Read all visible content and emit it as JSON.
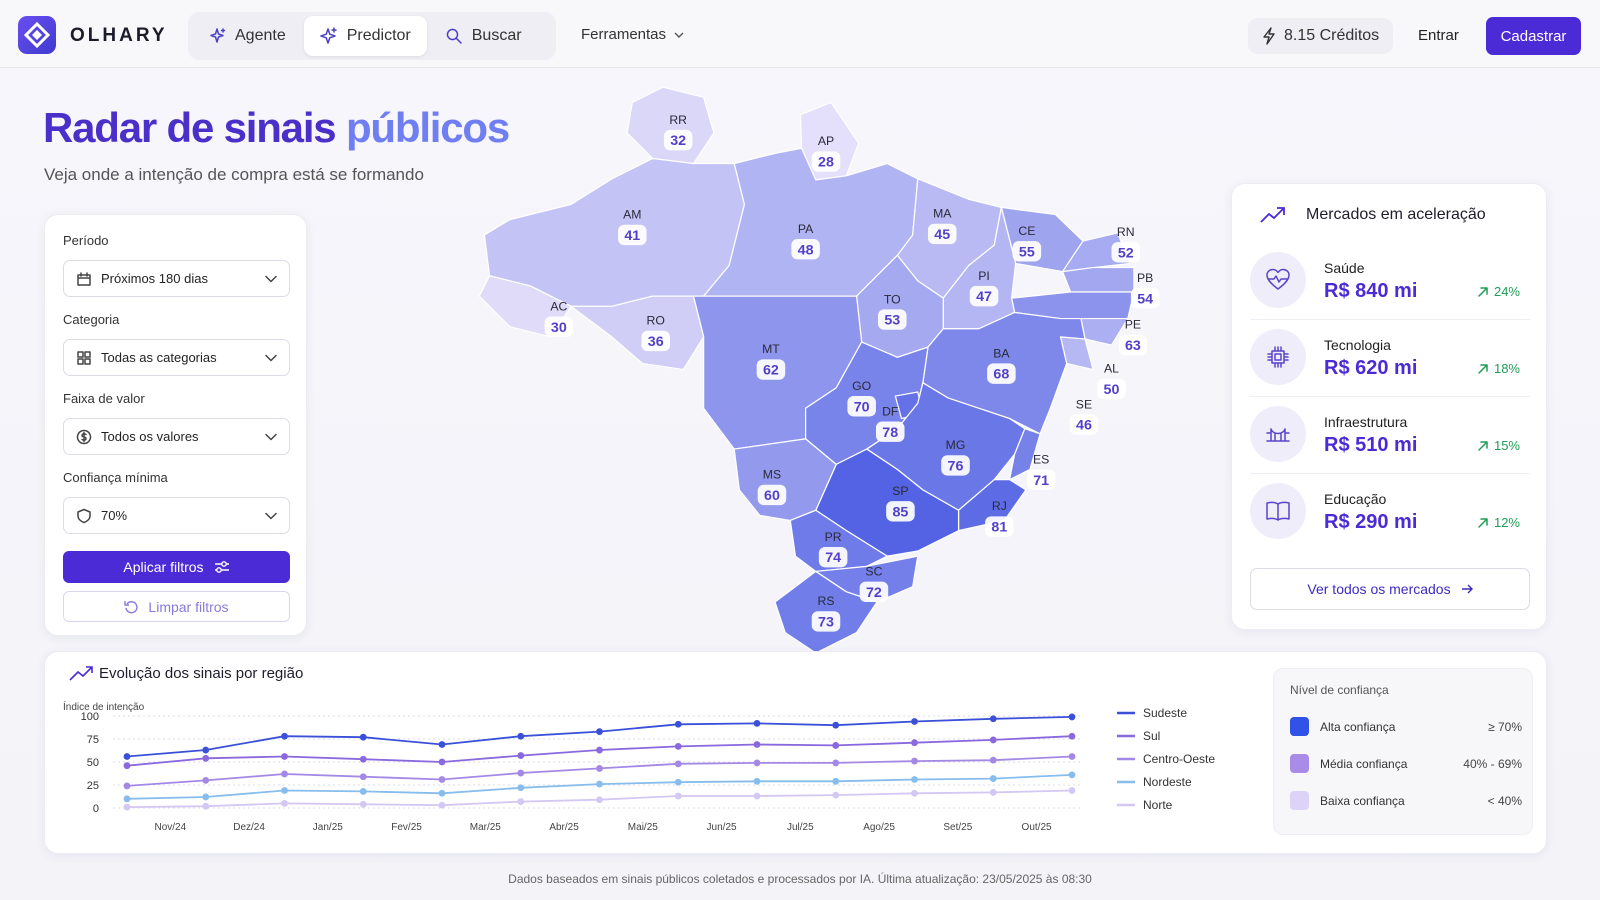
{
  "nav": {
    "brand": "OLHARY",
    "tabs": [
      "Agente",
      "Predictor",
      "Buscar"
    ],
    "tools": "Ferramentas",
    "credits": "8.15 Créditos",
    "login": "Entrar",
    "signup": "Cadastrar"
  },
  "hero": {
    "title": "Radar de sinais",
    "title_accent": "públicos",
    "subtitle": "Veja onde a intenção de compra está se formando"
  },
  "filters": {
    "fields": [
      {
        "label": "Período",
        "value": "Próximos 180 dias"
      },
      {
        "label": "Categoria",
        "value": "Todas as categorias"
      },
      {
        "label": "Faixa de valor",
        "value": "Todos os valores"
      },
      {
        "label": "Confiança mínima",
        "value": "70%"
      }
    ],
    "apply": "Aplicar filtros",
    "clear": "Limpar filtros"
  },
  "map": {
    "states": [
      {
        "code": "RR",
        "value": 32
      },
      {
        "code": "AP",
        "value": 28
      },
      {
        "code": "AM",
        "value": 41
      },
      {
        "code": "PA",
        "value": 48
      },
      {
        "code": "MA",
        "value": 45
      },
      {
        "code": "CE",
        "value": 55
      },
      {
        "code": "RN",
        "value": 52
      },
      {
        "code": "PB",
        "value": 54
      },
      {
        "code": "PE",
        "value": 63
      },
      {
        "code": "AL",
        "value": 50
      },
      {
        "code": "SE",
        "value": 46
      },
      {
        "code": "PI",
        "value": 47
      },
      {
        "code": "TO",
        "value": 53
      },
      {
        "code": "BA",
        "value": 68
      },
      {
        "code": "MT",
        "value": 62
      },
      {
        "code": "GO",
        "value": 70
      },
      {
        "code": "DF",
        "value": 78
      },
      {
        "code": "MG",
        "value": 76
      },
      {
        "code": "ES",
        "value": 71
      },
      {
        "code": "RJ",
        "value": 81
      },
      {
        "code": "SP",
        "value": 85
      },
      {
        "code": "MS",
        "value": 60
      },
      {
        "code": "PR",
        "value": 74
      },
      {
        "code": "SC",
        "value": 72
      },
      {
        "code": "RS",
        "value": 73
      },
      {
        "code": "AC",
        "value": 30
      },
      {
        "code": "RO",
        "value": 36
      }
    ]
  },
  "markets": {
    "title": "Mercados em aceleração",
    "items": [
      {
        "name": "Saúde",
        "value": "R$ 840 mi",
        "change": "24%"
      },
      {
        "name": "Tecnologia",
        "value": "R$ 620 mi",
        "change": "18%"
      },
      {
        "name": "Infraestrutura",
        "value": "R$ 510 mi",
        "change": "15%"
      },
      {
        "name": "Educação",
        "value": "R$ 290 mi",
        "change": "12%"
      }
    ],
    "button": "Ver todos os mercados"
  },
  "chart_data": {
    "type": "line",
    "title": "Evolução dos sinais por região",
    "y_label": "Índice de intenção",
    "categories": [
      null,
      "Nov/24",
      "Dez/24",
      "Jan/25",
      "Fev/25",
      "Mar/25",
      "Abr/25",
      "Mai/25",
      "Jun/25",
      "Jul/25",
      "Ago/25",
      "Set/25",
      "Out/25"
    ],
    "ylim": [
      0,
      100
    ],
    "yticks": [
      0,
      25,
      50,
      75,
      100
    ],
    "grid": true,
    "series": [
      {
        "name": "Sudeste",
        "color": "#3a50d9",
        "values": [
          56,
          63,
          78,
          77,
          69,
          78,
          83,
          91,
          92,
          90,
          94,
          97,
          99
        ]
      },
      {
        "name": "Sul",
        "color": "#8a68de",
        "values": [
          46,
          54,
          56,
          53,
          50,
          57,
          63,
          67,
          69,
          68,
          71,
          74,
          78
        ]
      },
      {
        "name": "Centro-Oeste",
        "color": "#a488e6",
        "values": [
          24,
          30,
          37,
          34,
          31,
          38,
          43,
          48,
          49,
          49,
          51,
          52,
          56
        ]
      },
      {
        "name": "Nordeste",
        "color": "#86bdec",
        "values": [
          10,
          12,
          19,
          18,
          16,
          22,
          26,
          28,
          29,
          29,
          31,
          32,
          36
        ]
      },
      {
        "name": "Norte",
        "color": "#d3c7f4",
        "values": [
          1,
          2,
          5,
          4,
          3,
          7,
          9,
          13,
          13,
          14,
          16,
          17,
          19
        ]
      }
    ]
  },
  "confidence": {
    "title": "Nível de confiança",
    "levels": [
      {
        "name": "Alta confiança",
        "range": "≥ 70%",
        "color": "#3152e6"
      },
      {
        "name": "Média confiança",
        "range": "40% - 69%",
        "color": "#a98be8"
      },
      {
        "name": "Baixa confiança",
        "range": "< 40%",
        "color": "#ddd3f7"
      }
    ]
  },
  "footer": "Dados baseados em sinais públicos coletados e processados por IA. Última atualização: 23/05/2025 às 08:30"
}
